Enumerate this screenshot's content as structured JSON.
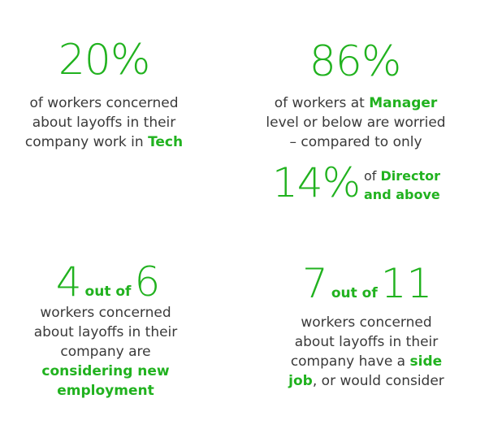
{
  "stat1": {
    "value": "20%",
    "line1": "of workers concerned",
    "line2": "about layoffs in their",
    "line3_pre": "company work in ",
    "line3_hl": "Tech"
  },
  "stat2": {
    "value": "86%",
    "line1_pre": "of workers at ",
    "line1_hl": "Manager",
    "line2": "level or below are worried",
    "line3": "– compared to only",
    "sub_value": "14%",
    "sub_line1_pre": "of ",
    "sub_line1_hl": "Director",
    "sub_line2_hl": "and above"
  },
  "stat3": {
    "num_a": "4",
    "out_of": "out of",
    "num_b": "6",
    "line1": "workers concerned",
    "line2": "about layoffs in their",
    "line3": "company are",
    "line4_hl": "considering new",
    "line5_hl": "employment"
  },
  "stat4": {
    "num_a": "7",
    "out_of": "out of",
    "num_b": "11",
    "line1": "workers concerned",
    "line2": "about layoffs in their",
    "line3_pre": "company have a ",
    "line3_hl": "side",
    "line4_hl": "job",
    "line4_post": ", or would consider"
  },
  "colors": {
    "accent": "#21b21f",
    "text": "#3a3a3a",
    "background": "#ffffff"
  }
}
